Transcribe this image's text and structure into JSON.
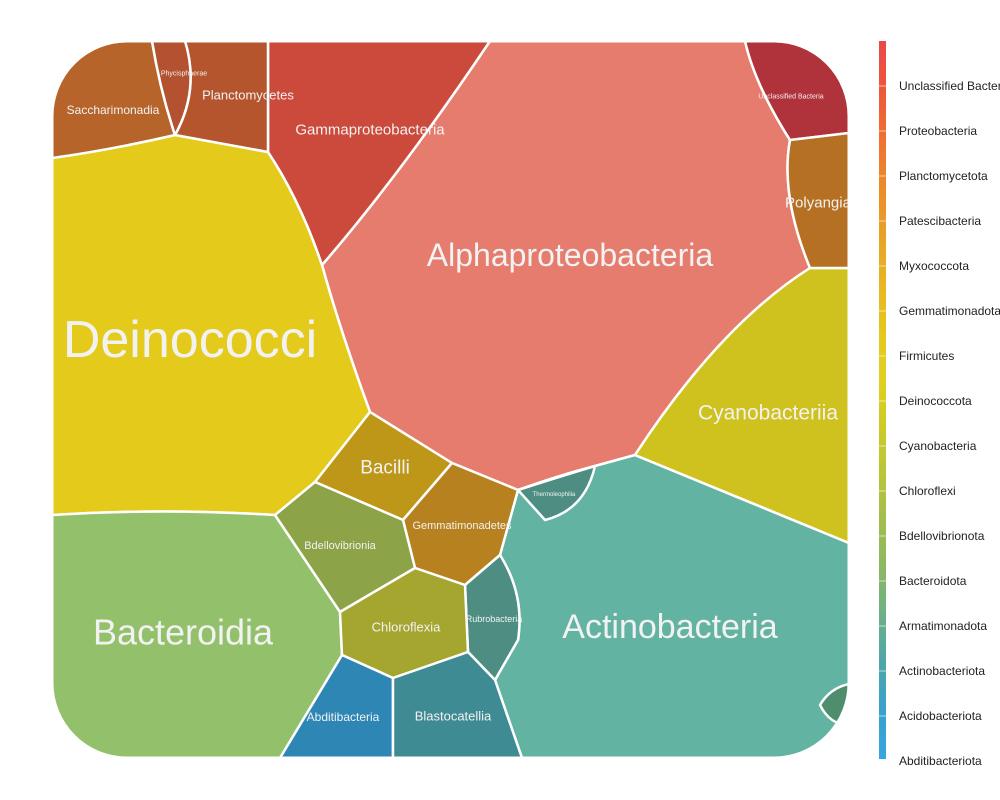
{
  "chart_data": {
    "type": "voronoi-treemap",
    "title": "",
    "cells": [
      {
        "label": "Alphaproteobacteria",
        "phylum": "Proteobacteria",
        "color": "#E67C6D"
      },
      {
        "label": "Deinococci",
        "phylum": "Deinococcota",
        "color": "#E4CA1A"
      },
      {
        "label": "Bacteroidia",
        "phylum": "Bacteroidota",
        "color": "#93C06A"
      },
      {
        "label": "Actinobacteria",
        "phylum": "Actinobacteriota",
        "color": "#63B3A3"
      },
      {
        "label": "Cyanobacteriia",
        "phylum": "Cyanobacteria",
        "color": "#CFC21E"
      },
      {
        "label": "Gammaproteobacteria",
        "phylum": "Proteobacteria",
        "color": "#CB4A3B"
      },
      {
        "label": "Saccharimonadia",
        "phylum": "Patescibacteria",
        "color": "#B6642A"
      },
      {
        "label": "Planctomycetes",
        "phylum": "Planctomycetota",
        "color": "#B4552E"
      },
      {
        "label": "Phycisphaerae",
        "phylum": "Planctomycetota",
        "color": "#B35130"
      },
      {
        "label": "Unclassified Bacteria",
        "phylum": "Unclassified Bacteria",
        "color": "#B0323A"
      },
      {
        "label": "Polyangia",
        "phylum": "Myxococcota",
        "color": "#B67023"
      },
      {
        "label": "Bacilli",
        "phylum": "Firmicutes",
        "color": "#BE9618"
      },
      {
        "label": "Gemmatimonadetes",
        "phylum": "Gemmatimonadota",
        "color": "#B6811E"
      },
      {
        "label": "Thermoleophilia",
        "phylum": "Actinobacteriota",
        "color": "#4E8E82"
      },
      {
        "label": "Rubrobacteria",
        "phylum": "Actinobacteriota",
        "color": "#4E8E82"
      },
      {
        "label": "Bdellovibrionia",
        "phylum": "Bdellovibrionota",
        "color": "#8DA348"
      },
      {
        "label": "Chloroflexia",
        "phylum": "Chloroflexi",
        "color": "#A4A62F"
      },
      {
        "label": "Abditibacteria",
        "phylum": "Abditibacteriota",
        "color": "#2E86B5"
      },
      {
        "label": "Blastocatellia",
        "phylum": "Acidobacteriota",
        "color": "#3E8B93"
      }
    ],
    "legend": {
      "placement": "right",
      "entries": [
        "Unclassified Bacteria",
        "Proteobacteria",
        "Planctomycetota",
        "Patescibacteria",
        "Myxococcota",
        "Gemmatimonadota",
        "Firmicutes",
        "Deinococcota",
        "Cyanobacteria",
        "Chloroflexi",
        "Bdellovibrionota",
        "Bacteroidota",
        "Armatimonadota",
        "Actinobacteriota",
        "Acidobacteriota",
        "Abditibacteriota"
      ],
      "colors": [
        "#E84A4A",
        "#F0553A",
        "#F07030",
        "#EC8A28",
        "#E9A028",
        "#E8B425",
        "#E6C61E",
        "#E2D020",
        "#CFCB25",
        "#B9C638",
        "#A3BE4C",
        "#8CB863",
        "#6DB087",
        "#4EA6A8",
        "#37A1CE",
        "#35A6E0"
      ]
    },
    "grid": false
  }
}
